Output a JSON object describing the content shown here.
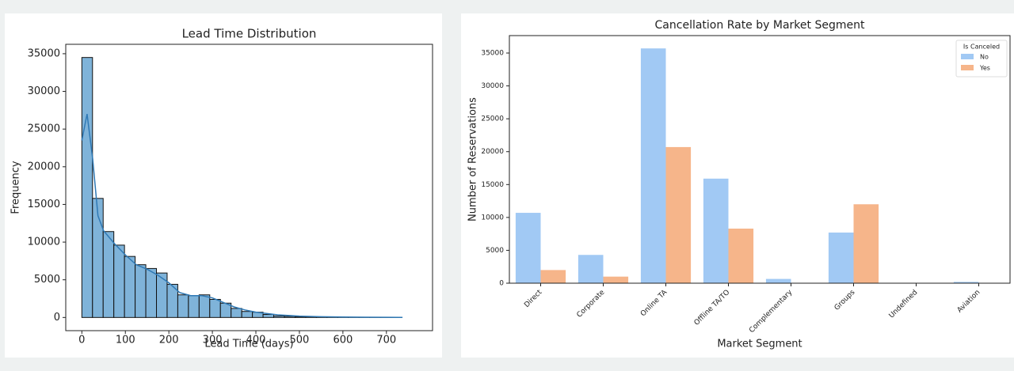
{
  "chart_data": [
    {
      "type": "histogram",
      "title": "Lead Time Distribution",
      "xlabel": "Lead Time (days)",
      "ylabel": "Frequency",
      "bins": [
        0,
        24.5,
        49,
        73.5,
        98,
        122.5,
        147,
        171.5,
        196,
        220.5,
        245,
        269.5,
        294,
        318.5,
        343,
        367.5,
        392,
        416.5,
        441,
        465.5,
        490,
        514.5,
        539,
        563.5,
        588,
        612.5,
        637,
        661.5,
        686,
        710.5,
        735
      ],
      "values": [
        34500,
        15800,
        11400,
        9600,
        8100,
        7000,
        6500,
        5900,
        4400,
        3000,
        2900,
        3000,
        2400,
        1900,
        1200,
        800,
        700,
        400,
        200,
        150,
        100,
        80,
        60,
        40,
        20,
        20,
        20,
        20,
        10,
        10
      ],
      "color": "#7fb3d9",
      "edgecolor": "#111111",
      "kde": {
        "color": "#2f79b5",
        "x": [
          0,
          12,
          25,
          37,
          50,
          75,
          100,
          125,
          150,
          175,
          200,
          225,
          250,
          275,
          300,
          325,
          350,
          375,
          400,
          450,
          500,
          550,
          600,
          650,
          700,
          737
        ],
        "values": [
          23500,
          27000,
          21000,
          13500,
          11500,
          9800,
          8300,
          7000,
          6400,
          5600,
          4600,
          3300,
          2900,
          2900,
          2600,
          2000,
          1400,
          1000,
          700,
          350,
          180,
          100,
          60,
          30,
          15,
          5
        ]
      },
      "xlim": [
        -37,
        806
      ],
      "xticks": [
        0,
        100,
        200,
        300,
        400,
        500,
        600,
        700
      ],
      "ylim": [
        -1750,
        36250
      ],
      "yticks": [
        0,
        5000,
        10000,
        15000,
        20000,
        25000,
        30000,
        35000
      ]
    },
    {
      "type": "bar",
      "title": "Cancellation Rate by Market Segment",
      "xlabel": "Market Segment",
      "ylabel": "Number of Reservations",
      "categories": [
        "Direct",
        "Corporate",
        "Online TA",
        "Offline TA/TO",
        "Complementary",
        "Groups",
        "Undefined",
        "Aviation"
      ],
      "legend_title": "Is Canceled",
      "legend": "upper right",
      "series": [
        {
          "name": "No",
          "color": "#a1c9f4",
          "values": [
            10700,
            4300,
            35700,
            15900,
            650,
            7700,
            0,
            200
          ]
        },
        {
          "name": "Yes",
          "color": "#f6b58a",
          "values": [
            2000,
            1000,
            20700,
            8300,
            60,
            12000,
            0,
            50
          ]
        }
      ],
      "ylim": [
        0,
        37650
      ],
      "yticks": [
        0,
        5000,
        10000,
        15000,
        20000,
        25000,
        30000,
        35000
      ]
    }
  ]
}
